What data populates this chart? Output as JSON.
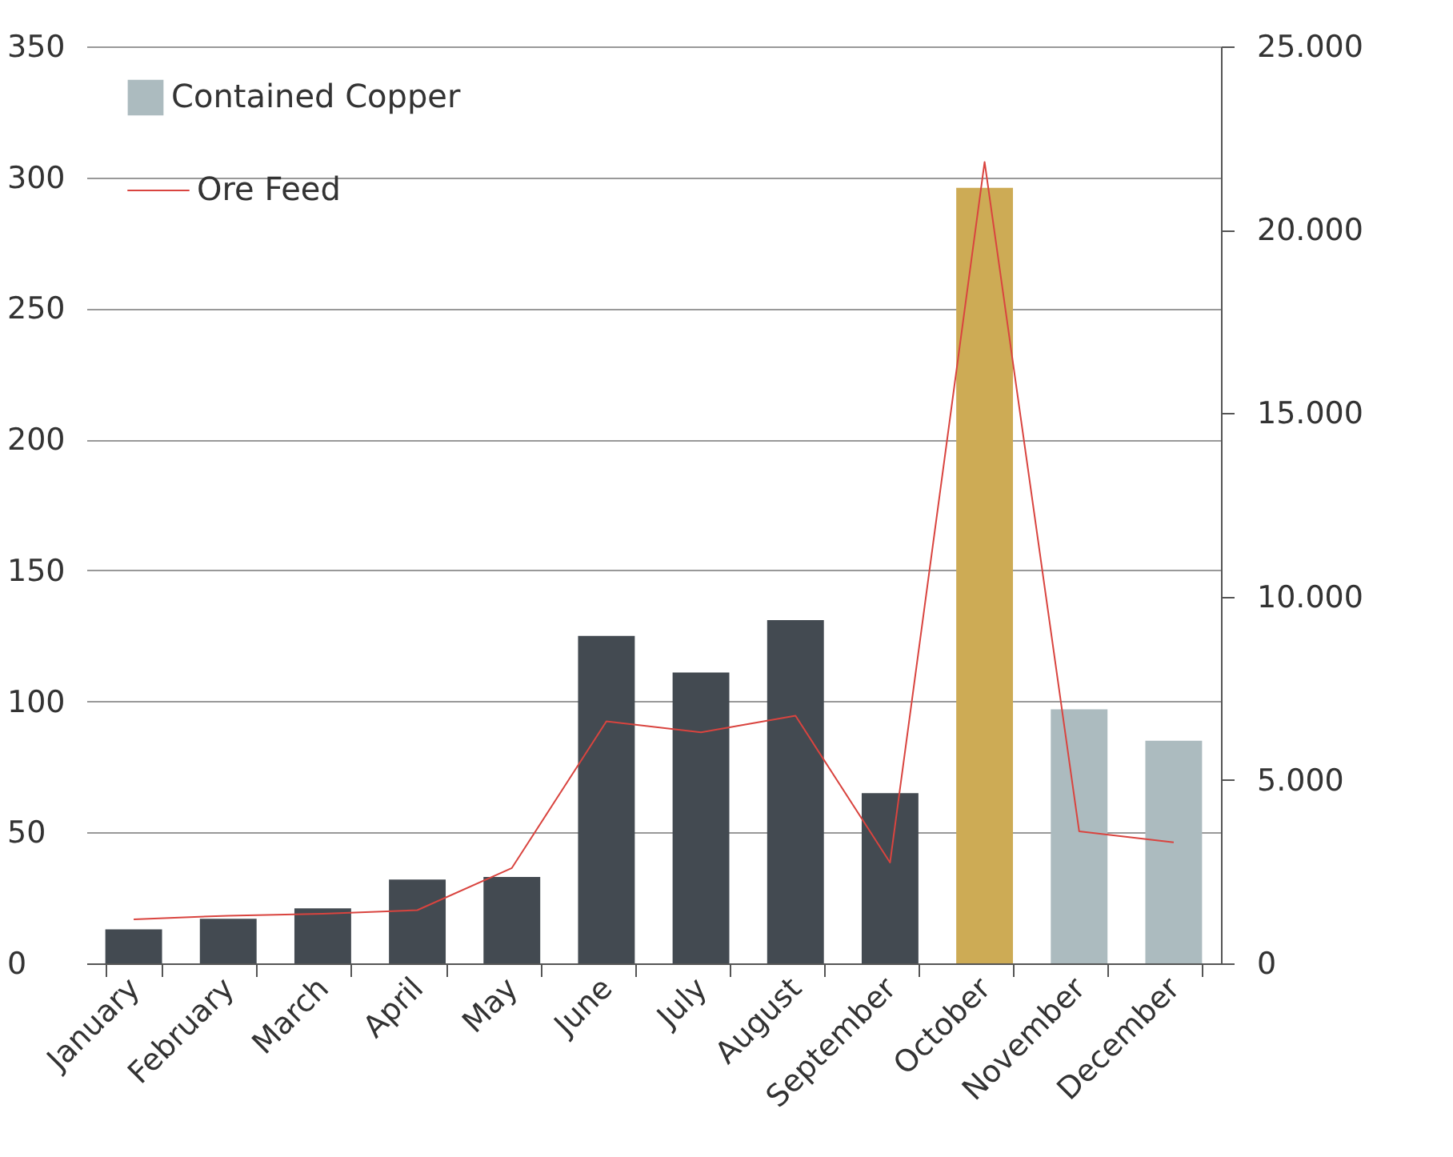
{
  "chart_data": {
    "type": "bar",
    "categories": [
      "January",
      "February",
      "March",
      "April",
      "May",
      "June",
      "July",
      "August",
      "September",
      "October",
      "November",
      "December"
    ],
    "series": [
      {
        "name": "Contained Copper",
        "color": "#acbbbf",
        "colors": [
          "#434a51",
          "#434a51",
          "#434a51",
          "#434a51",
          "#434a51",
          "#434a51",
          "#434a51",
          "#434a51",
          "#434a51",
          "#cdab55",
          "#acbbbf",
          "#acbbbf"
        ],
        "values": [
          13,
          17,
          21,
          32,
          33,
          125,
          111,
          131,
          65,
          296,
          97,
          85
        ]
      },
      {
        "name": "Ore Feed",
        "type": "line",
        "axis": "y2",
        "color": "#d9443f",
        "values": [
          1200,
          1300,
          1350,
          1450,
          2600,
          6600,
          6300,
          6750,
          2750,
          21850,
          3600,
          3300
        ]
      }
    ],
    "ylim": [
      0,
      350
    ],
    "yticks": [
      0,
      50,
      100,
      150,
      200,
      250,
      300,
      350
    ],
    "y2lim": [
      0,
      25000
    ],
    "y2ticks": [
      0,
      {
        "value": 5000,
        "label": "5.000"
      },
      {
        "value": 10000,
        "label": "10.000"
      },
      {
        "value": 15000,
        "label": "15.000"
      },
      {
        "value": 20000,
        "label": "20.000"
      },
      {
        "value": 25000,
        "label": "25.000"
      }
    ],
    "grid": "y",
    "legend": "top left"
  }
}
